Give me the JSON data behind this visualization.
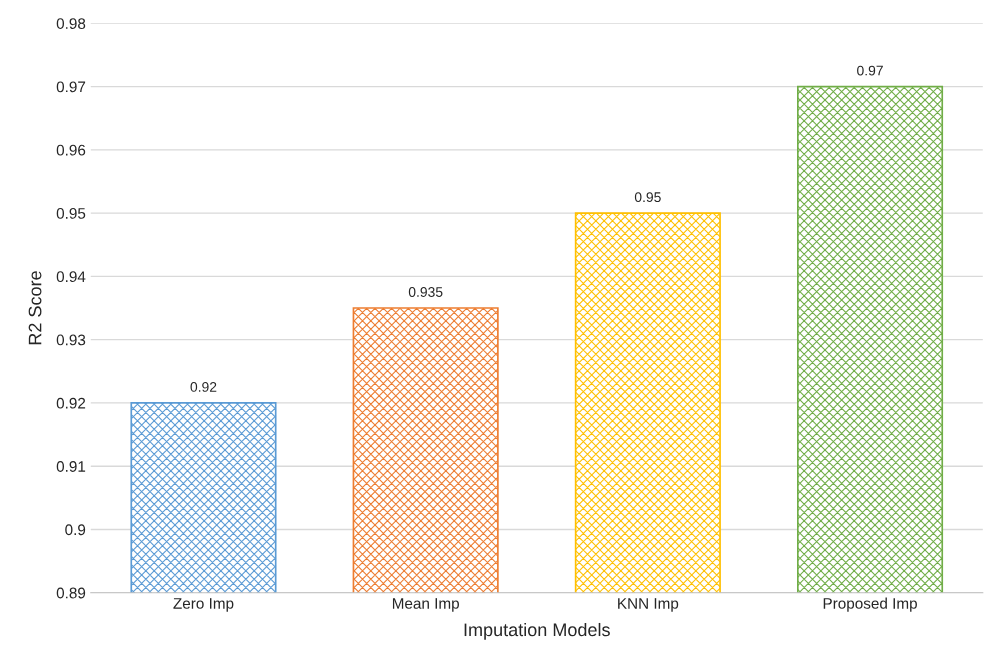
{
  "chart_data": {
    "type": "bar",
    "xlabel": "Imputation Models",
    "ylabel": "R2 Score",
    "categories": [
      "Zero Imp",
      "Mean Imp",
      "KNN Imp",
      "Proposed Imp"
    ],
    "values": [
      0.92,
      0.935,
      0.95,
      0.97
    ],
    "colors": [
      "#5b9bd5",
      "#ed7d31",
      "#ffc000",
      "#70ad47"
    ],
    "ylim": [
      0.89,
      0.98
    ],
    "yticks": [
      0.89,
      0.9,
      0.91,
      0.92,
      0.93,
      0.94,
      0.95,
      0.96,
      0.97,
      0.98
    ],
    "grid": "y",
    "data_labels": true,
    "legend": false
  }
}
